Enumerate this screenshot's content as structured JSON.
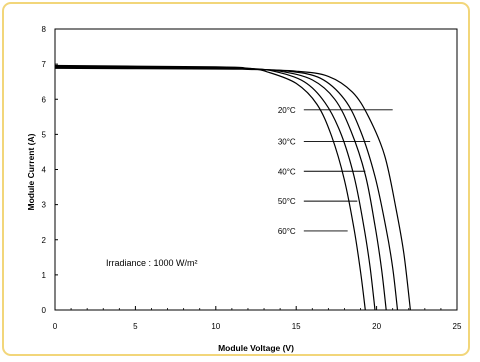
{
  "chart_data": {
    "type": "line",
    "xlabel": "Module Voltage (V)",
    "ylabel": "Module Current (A)",
    "xlim": [
      0,
      25
    ],
    "ylim": [
      0,
      8
    ],
    "x_ticks": [
      "0",
      "5",
      "10",
      "15",
      "20",
      "25"
    ],
    "y_ticks": [
      "0",
      "1",
      "2",
      "3",
      "4",
      "5",
      "6",
      "7",
      "8"
    ],
    "grid": false,
    "annotation": "Irradiance : 1000 W/m²",
    "colors": {
      "frame_border": "#f2d67a",
      "lines": "#000000"
    },
    "series": [
      {
        "name": "20°C",
        "isc": 6.88,
        "voc": 22.1,
        "label_at": [
          12.8,
          5.7
        ],
        "leader_to": 21.0,
        "points": [
          [
            0,
            6.88
          ],
          [
            10,
            6.86
          ],
          [
            12,
            6.85
          ],
          [
            15,
            6.8
          ],
          [
            17,
            6.65
          ],
          [
            18.5,
            6.2
          ],
          [
            19.5,
            5.5
          ],
          [
            20.5,
            4.4
          ],
          [
            21.2,
            2.9
          ],
          [
            21.7,
            1.6
          ],
          [
            22.1,
            0
          ]
        ]
      },
      {
        "name": "30°C",
        "isc": 6.9,
        "voc": 21.3,
        "label_at": [
          12.8,
          4.8
        ],
        "leader_to": 19.6,
        "points": [
          [
            0,
            6.9
          ],
          [
            10,
            6.88
          ],
          [
            12,
            6.86
          ],
          [
            14.5,
            6.8
          ],
          [
            16.5,
            6.6
          ],
          [
            18,
            6.0
          ],
          [
            19,
            5.1
          ],
          [
            19.9,
            3.8
          ],
          [
            20.6,
            2.3
          ],
          [
            21.0,
            1.2
          ],
          [
            21.3,
            0
          ]
        ]
      },
      {
        "name": "40°C",
        "isc": 6.92,
        "voc": 20.6,
        "label_at": [
          12.8,
          3.95
        ],
        "leader_to": 19.3,
        "points": [
          [
            0,
            6.92
          ],
          [
            10,
            6.9
          ],
          [
            12,
            6.87
          ],
          [
            14,
            6.8
          ],
          [
            16,
            6.55
          ],
          [
            17.4,
            6.0
          ],
          [
            18.4,
            5.1
          ],
          [
            19.3,
            3.85
          ],
          [
            19.9,
            2.4
          ],
          [
            20.3,
            1.2
          ],
          [
            20.6,
            0
          ]
        ]
      },
      {
        "name": "50°C",
        "isc": 6.94,
        "voc": 19.9,
        "label_at": [
          12.8,
          3.1
        ],
        "leader_to": 18.8,
        "points": [
          [
            0,
            6.94
          ],
          [
            10,
            6.91
          ],
          [
            12,
            6.88
          ],
          [
            13.6,
            6.8
          ],
          [
            15.5,
            6.5
          ],
          [
            16.8,
            5.9
          ],
          [
            17.8,
            5.0
          ],
          [
            18.6,
            3.8
          ],
          [
            19.2,
            2.4
          ],
          [
            19.6,
            1.2
          ],
          [
            19.9,
            0
          ]
        ]
      },
      {
        "name": "60°C",
        "isc": 6.96,
        "voc": 19.3,
        "label_at": [
          12.8,
          2.25
        ],
        "leader_to": 18.2,
        "points": [
          [
            0,
            6.96
          ],
          [
            10,
            6.92
          ],
          [
            12,
            6.88
          ],
          [
            13.2,
            6.78
          ],
          [
            15,
            6.45
          ],
          [
            16.3,
            5.85
          ],
          [
            17.2,
            4.95
          ],
          [
            18.0,
            3.7
          ],
          [
            18.6,
            2.3
          ],
          [
            19.0,
            1.1
          ],
          [
            19.3,
            0
          ]
        ]
      }
    ]
  }
}
